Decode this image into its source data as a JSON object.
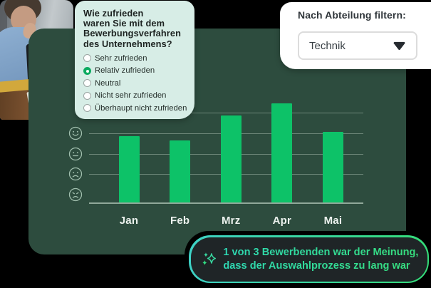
{
  "survey_card": {
    "question_lines": [
      "Wie zufrieden",
      "waren Sie mit dem",
      "Bewerbungsverfahren",
      "des Unternehmens?"
    ],
    "question": "Wie zufrieden waren Sie mit dem Bewerbungsverfahren des Unternehmens?",
    "options": [
      {
        "label": "Sehr zufrieden",
        "selected": false
      },
      {
        "label": "Relativ zufrieden",
        "selected": true
      },
      {
        "label": "Neutral",
        "selected": false
      },
      {
        "label": "Nicht sehr zufrieden",
        "selected": false
      },
      {
        "label": "Überhaupt nicht zufrieden",
        "selected": false
      }
    ]
  },
  "filter_card": {
    "label": "Nach Abteilung filtern:",
    "dropdown": {
      "value": "Technik",
      "icon": "chevron-down-icon"
    }
  },
  "chart_data": {
    "type": "bar",
    "categories": [
      "Jan",
      "Feb",
      "Mrz",
      "Apr",
      "Mai"
    ],
    "values": [
      3.2,
      3.0,
      4.2,
      4.8,
      3.4
    ],
    "ylim": [
      0,
      5
    ],
    "grid": true,
    "title": "",
    "xlabel": "",
    "ylabel": "",
    "y_axis_tick_icons": [
      "happy-face-icon",
      "neutral-face-icon",
      "sad-face-icon",
      "distressed-face-icon"
    ],
    "legend": "none",
    "bar_color": "#0dc268"
  },
  "banner": {
    "icon": "sparkles-icon",
    "lines": [
      "1 von 3 Bewerbenden war der Meinung,",
      "dass der Auswahlprozess zu lang war"
    ]
  },
  "colors": {
    "page_background": "#000000",
    "panel_background": "#2d4c3e",
    "bar_green": "#0dc268",
    "survey_card_background": "#d7ede6",
    "radio_selected_green": "#0caa60",
    "banner_border_teal": "#3ed2c6",
    "banner_border_green": "#34dc78",
    "banner_background": "#1f2527"
  }
}
